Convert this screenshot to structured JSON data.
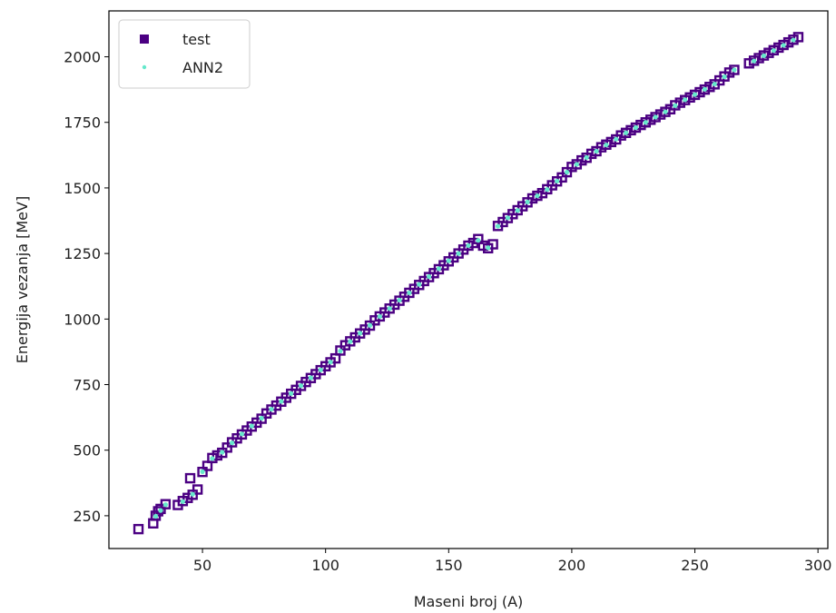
{
  "chart_data": {
    "type": "scatter",
    "xlabel": "Maseni broj (A)",
    "ylabel": "Energija vezanja [MeV]",
    "xlim": [
      12,
      304
    ],
    "ylim": [
      125,
      2175
    ],
    "xticks": [
      50,
      100,
      150,
      200,
      250,
      300
    ],
    "yticks": [
      250,
      500,
      750,
      1000,
      1250,
      1500,
      1750,
      2000
    ],
    "legend_position": "top-left",
    "series": [
      {
        "name": "test",
        "marker": "square-open",
        "color": "#4b0082",
        "points": [
          [
            24,
            199
          ],
          [
            30,
            221
          ],
          [
            31,
            250
          ],
          [
            32,
            267
          ],
          [
            33,
            276
          ],
          [
            35,
            294
          ],
          [
            40,
            291
          ],
          [
            42,
            306
          ],
          [
            44,
            318
          ],
          [
            45,
            393
          ],
          [
            46,
            330
          ],
          [
            48,
            350
          ],
          [
            50,
            417
          ],
          [
            52,
            440
          ],
          [
            54,
            470
          ],
          [
            56,
            480
          ],
          [
            58,
            490
          ],
          [
            60,
            510
          ],
          [
            62,
            530
          ],
          [
            64,
            545
          ],
          [
            66,
            560
          ],
          [
            68,
            575
          ],
          [
            70,
            590
          ],
          [
            72,
            605
          ],
          [
            74,
            620
          ],
          [
            76,
            640
          ],
          [
            78,
            655
          ],
          [
            80,
            670
          ],
          [
            82,
            685
          ],
          [
            84,
            700
          ],
          [
            86,
            715
          ],
          [
            88,
            730
          ],
          [
            90,
            745
          ],
          [
            92,
            760
          ],
          [
            94,
            775
          ],
          [
            96,
            790
          ],
          [
            98,
            805
          ],
          [
            100,
            820
          ],
          [
            102,
            835
          ],
          [
            104,
            850
          ],
          [
            106,
            880
          ],
          [
            108,
            900
          ],
          [
            110,
            915
          ],
          [
            112,
            930
          ],
          [
            114,
            945
          ],
          [
            116,
            960
          ],
          [
            118,
            975
          ],
          [
            120,
            995
          ],
          [
            122,
            1010
          ],
          [
            124,
            1025
          ],
          [
            126,
            1040
          ],
          [
            128,
            1055
          ],
          [
            130,
            1070
          ],
          [
            132,
            1085
          ],
          [
            134,
            1100
          ],
          [
            136,
            1115
          ],
          [
            138,
            1130
          ],
          [
            140,
            1145
          ],
          [
            142,
            1160
          ],
          [
            144,
            1175
          ],
          [
            146,
            1190
          ],
          [
            148,
            1205
          ],
          [
            150,
            1220
          ],
          [
            152,
            1235
          ],
          [
            154,
            1250
          ],
          [
            156,
            1265
          ],
          [
            158,
            1280
          ],
          [
            160,
            1290
          ],
          [
            162,
            1305
          ],
          [
            164,
            1280
          ],
          [
            166,
            1270
          ],
          [
            168,
            1285
          ],
          [
            170,
            1355
          ],
          [
            172,
            1370
          ],
          [
            174,
            1385
          ],
          [
            176,
            1400
          ],
          [
            178,
            1415
          ],
          [
            180,
            1430
          ],
          [
            182,
            1445
          ],
          [
            184,
            1460
          ],
          [
            186,
            1470
          ],
          [
            188,
            1480
          ],
          [
            190,
            1495
          ],
          [
            192,
            1510
          ],
          [
            194,
            1525
          ],
          [
            196,
            1540
          ],
          [
            198,
            1560
          ],
          [
            200,
            1580
          ],
          [
            202,
            1590
          ],
          [
            204,
            1605
          ],
          [
            206,
            1615
          ],
          [
            208,
            1630
          ],
          [
            210,
            1640
          ],
          [
            212,
            1655
          ],
          [
            214,
            1665
          ],
          [
            216,
            1675
          ],
          [
            218,
            1685
          ],
          [
            220,
            1700
          ],
          [
            222,
            1710
          ],
          [
            224,
            1720
          ],
          [
            226,
            1730
          ],
          [
            228,
            1740
          ],
          [
            230,
            1750
          ],
          [
            232,
            1760
          ],
          [
            234,
            1770
          ],
          [
            236,
            1780
          ],
          [
            238,
            1790
          ],
          [
            240,
            1800
          ],
          [
            242,
            1815
          ],
          [
            244,
            1825
          ],
          [
            246,
            1835
          ],
          [
            248,
            1845
          ],
          [
            250,
            1855
          ],
          [
            252,
            1865
          ],
          [
            254,
            1875
          ],
          [
            256,
            1885
          ],
          [
            258,
            1895
          ],
          [
            260,
            1910
          ],
          [
            262,
            1925
          ],
          [
            264,
            1940
          ],
          [
            266,
            1950
          ],
          [
            272,
            1975
          ],
          [
            274,
            1985
          ],
          [
            276,
            1995
          ],
          [
            278,
            2005
          ],
          [
            280,
            2015
          ],
          [
            282,
            2025
          ],
          [
            284,
            2035
          ],
          [
            286,
            2045
          ],
          [
            288,
            2055
          ],
          [
            290,
            2065
          ],
          [
            292,
            2075
          ]
        ]
      },
      {
        "name": "ANN2",
        "marker": "dot",
        "color": "#66e8cc",
        "points": [
          [
            31,
            248
          ],
          [
            33,
            270
          ],
          [
            35,
            292
          ],
          [
            42,
            304
          ],
          [
            46,
            332
          ],
          [
            50,
            418
          ],
          [
            54,
            468
          ],
          [
            58,
            492
          ],
          [
            62,
            528
          ],
          [
            66,
            562
          ],
          [
            70,
            592
          ],
          [
            74,
            622
          ],
          [
            78,
            656
          ],
          [
            82,
            686
          ],
          [
            86,
            716
          ],
          [
            90,
            746
          ],
          [
            94,
            776
          ],
          [
            98,
            806
          ],
          [
            102,
            836
          ],
          [
            106,
            878
          ],
          [
            110,
            914
          ],
          [
            114,
            946
          ],
          [
            118,
            976
          ],
          [
            122,
            1010
          ],
          [
            126,
            1040
          ],
          [
            130,
            1072
          ],
          [
            134,
            1100
          ],
          [
            138,
            1132
          ],
          [
            142,
            1162
          ],
          [
            146,
            1192
          ],
          [
            150,
            1222
          ],
          [
            154,
            1250
          ],
          [
            158,
            1280
          ],
          [
            162,
            1300
          ],
          [
            166,
            1272
          ],
          [
            170,
            1354
          ],
          [
            174,
            1386
          ],
          [
            178,
            1414
          ],
          [
            182,
            1446
          ],
          [
            186,
            1470
          ],
          [
            190,
            1494
          ],
          [
            194,
            1526
          ],
          [
            198,
            1560
          ],
          [
            202,
            1590
          ],
          [
            206,
            1616
          ],
          [
            210,
            1640
          ],
          [
            214,
            1664
          ],
          [
            218,
            1686
          ],
          [
            222,
            1710
          ],
          [
            226,
            1730
          ],
          [
            230,
            1750
          ],
          [
            234,
            1770
          ],
          [
            238,
            1790
          ],
          [
            242,
            1814
          ],
          [
            246,
            1836
          ],
          [
            250,
            1856
          ],
          [
            254,
            1876
          ],
          [
            258,
            1896
          ],
          [
            262,
            1924
          ],
          [
            266,
            1950
          ],
          [
            274,
            1984
          ],
          [
            278,
            2004
          ],
          [
            282,
            2024
          ],
          [
            286,
            2044
          ],
          [
            290,
            2064
          ]
        ]
      }
    ]
  }
}
